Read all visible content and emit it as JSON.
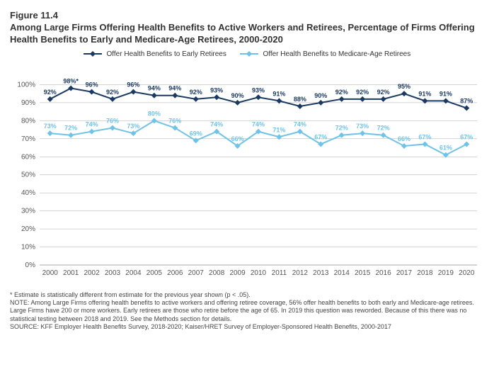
{
  "figure_number": "Figure 11.4",
  "title": "Among Large Firms Offering Health Benefits to Active Workers and Retirees, Percentage of Firms Offering Health Benefits to Early and Medicare-Age Retirees, 2000-2020",
  "legend": {
    "early": {
      "label": "Offer Health Benefits to Early Retirees",
      "color": "#1b3a63"
    },
    "medicare": {
      "label": "Offer Health Benefits to Medicare-Age Retirees",
      "color": "#6fc3e8"
    }
  },
  "chart": {
    "type": "line",
    "background_color": "#ffffff",
    "grid_color": "#a8a8a8",
    "axis_font_size": 10,
    "data_label_font_size": 9,
    "data_label_font_weight": "bold",
    "ylim": [
      0,
      110
    ],
    "y_ticks": [
      0,
      10,
      20,
      30,
      40,
      50,
      60,
      70,
      80,
      90,
      100
    ],
    "y_tick_labels": [
      "0%",
      "10%",
      "20%",
      "30%",
      "40%",
      "50%",
      "60%",
      "70%",
      "80%",
      "90%",
      "100%"
    ],
    "x_categories": [
      "2000",
      "2001",
      "2002",
      "2003",
      "2004",
      "2005",
      "2006",
      "2007",
      "2008",
      "2009",
      "2010",
      "2011",
      "2012",
      "2013",
      "2014",
      "2015",
      "2016",
      "2017",
      "2018",
      "2019",
      "2020"
    ],
    "line_width": 2,
    "marker_size": 4,
    "marker_shape": "diamond",
    "series": {
      "early": {
        "values": [
          92,
          98,
          96,
          92,
          96,
          94,
          94,
          92,
          93,
          90,
          93,
          91,
          88,
          90,
          92,
          92,
          92,
          95,
          91,
          91,
          87
        ],
        "labels": [
          "92%",
          "98%*",
          "96%",
          "92%",
          "96%",
          "94%",
          "94%",
          "92%",
          "93%",
          "90%",
          "93%",
          "91%",
          "88%",
          "90%",
          "92%",
          "92%",
          "92%",
          "95%",
          "91%",
          "91%",
          "87%"
        ],
        "color": "#1b3a63"
      },
      "medicare": {
        "values": [
          73,
          72,
          74,
          76,
          73,
          80,
          76,
          69,
          74,
          66,
          74,
          71,
          74,
          67,
          72,
          73,
          72,
          66,
          67,
          61,
          67
        ],
        "labels": [
          "73%",
          "72%",
          "74%",
          "76%",
          "73%",
          "80%",
          "76%",
          "69%",
          "74%",
          "66%",
          "74%",
          "71%",
          "74%",
          "67%",
          "72%",
          "73%",
          "72%",
          "66%",
          "67%",
          "61%",
          "67%"
        ],
        "color": "#6fc3e8"
      }
    }
  },
  "footnote": {
    "line1": "* Estimate is statistically different from estimate for the previous year shown (p < .05).",
    "line2": "NOTE: Among Large Firms offering health benefits to active workers and offering retiree coverage, 56% offer health benefits to both early and Medicare-age retirees. Large Firms have 200 or more workers. Early retirees are those who retire before the age of 65.  In 2019 this question was reworded.  Because of this there was no statistical testing between 2018 and 2019.  See the Methods section for details.",
    "line3": "SOURCE: KFF Employer Health Benefits Survey, 2018-2020; Kaiser/HRET Survey of Employer-Sponsored Health Benefits, 2000-2017"
  }
}
